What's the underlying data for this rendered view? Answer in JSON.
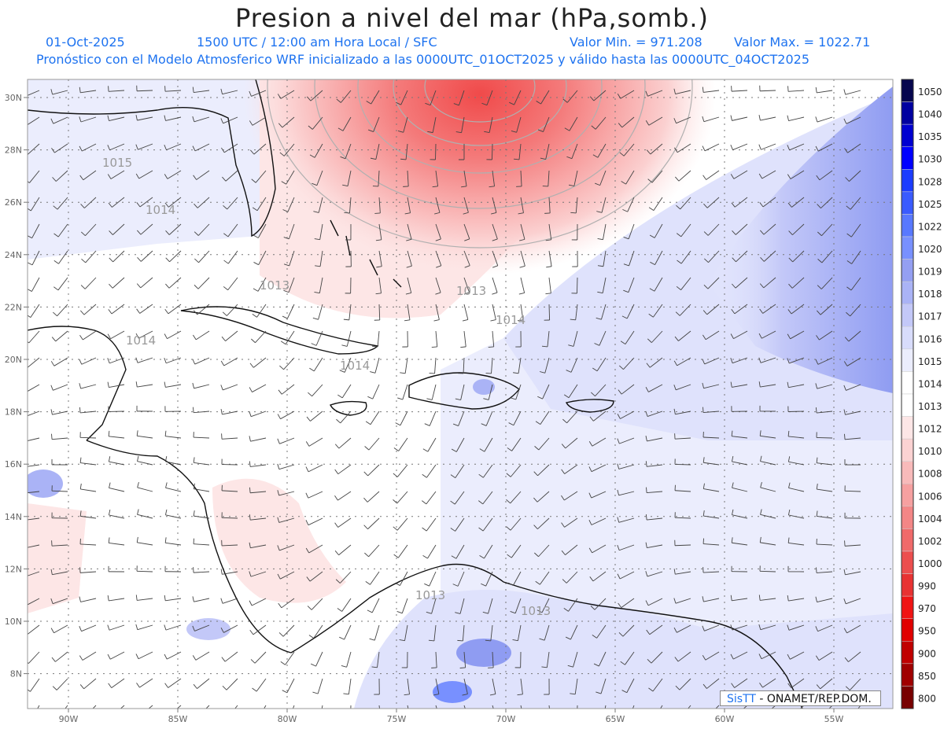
{
  "header": {
    "title": "Presion a nivel del mar (hPa,somb.)",
    "date": "01-Oct-2025",
    "time": "1500 UTC / 12:00 am Hora Local / SFC",
    "min_value": "Valor Min. = 971.208",
    "max_value": "Valor Max. = 1022.71",
    "forecast": "Pronóstico con el Modelo Atmosferico WRF inicializado a las 0000UTC_01OCT2025 y válido hasta las  0000UTC_04OCT2025"
  },
  "map": {
    "lon_labels": [
      "90W",
      "85W",
      "80W",
      "75W",
      "70W",
      "65W",
      "60W",
      "55W"
    ],
    "lat_labels": [
      "30N",
      "28N",
      "26N",
      "24N",
      "22N",
      "20N",
      "18N",
      "16N",
      "14N",
      "12N",
      "10N",
      "8N"
    ],
    "contour_labels": [
      {
        "text": "1015"
      },
      {
        "text": "1014"
      },
      {
        "text": "1013"
      },
      {
        "text": "1013"
      },
      {
        "text": "1014"
      },
      {
        "text": "1014"
      },
      {
        "text": "1014"
      },
      {
        "text": "1013"
      },
      {
        "text": "1013"
      }
    ]
  },
  "legend": {
    "levels": [
      "1050",
      "1040",
      "1035",
      "1030",
      "1028",
      "1025",
      "1022",
      "1020",
      "1019",
      "1018",
      "1017",
      "1016",
      "1015",
      "1014",
      "1013",
      "1012",
      "1010",
      "1008",
      "1006",
      "1004",
      "1002",
      "1000",
      "990",
      "970",
      "950",
      "900",
      "850",
      "800"
    ],
    "colors": [
      "#06064e",
      "#0000a0",
      "#0000d0",
      "#0000ff",
      "#1c3cff",
      "#3a5bff",
      "#5878ff",
      "#7890ff",
      "#949ff2",
      "#aab3f6",
      "#c3c8f8",
      "#d8dcfb",
      "#ebedfd",
      "#ffffff",
      "#ffffff",
      "#fde6e6",
      "#fbd2d2",
      "#f8baba",
      "#f6a0a0",
      "#f38686",
      "#f06a6a",
      "#ec4e4e",
      "#e83232",
      "#f01414",
      "#e00000",
      "#c00000",
      "#a00000",
      "#780000"
    ]
  },
  "credit": {
    "brand": "SisTT",
    "org": " - ONAMET/REP.DOM."
  }
}
